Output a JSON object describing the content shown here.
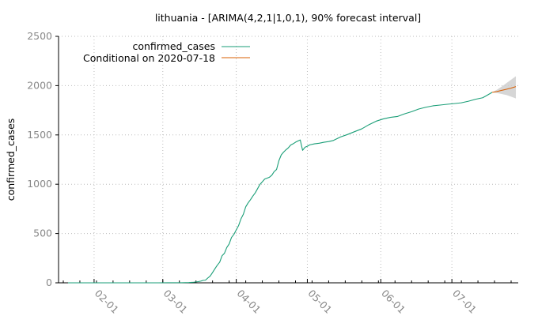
{
  "chart_data": {
    "type": "line",
    "title": "lithuania -  [ARIMA(4,2,1|1,0,1), 90% forecast interval]",
    "xlabel": "",
    "ylabel": "confirmed_cases",
    "x_type": "date",
    "xlim": [
      "2020-01-17",
      "2020-07-29"
    ],
    "ylim": [
      0,
      2500
    ],
    "yticks": [
      0,
      500,
      1000,
      1500,
      2000,
      2500
    ],
    "xticks": [
      {
        "date": "2020-02-01",
        "label": "02-01"
      },
      {
        "date": "2020-03-01",
        "label": "03-01"
      },
      {
        "date": "2020-04-01",
        "label": "04-01"
      },
      {
        "date": "2020-05-01",
        "label": "05-01"
      },
      {
        "date": "2020-06-01",
        "label": "06-01"
      },
      {
        "date": "2020-07-01",
        "label": "07-01"
      }
    ],
    "grid": true,
    "legend_position": "top-left",
    "series": [
      {
        "name": "confirmed_cases",
        "color": "#1a9e77",
        "x": [
          "2020-01-21",
          "2020-02-01",
          "2020-02-15",
          "2020-02-28",
          "2020-03-03",
          "2020-03-06",
          "2020-03-09",
          "2020-03-12",
          "2020-03-14",
          "2020-03-15",
          "2020-03-16",
          "2020-03-17",
          "2020-03-18",
          "2020-03-19",
          "2020-03-20",
          "2020-03-21",
          "2020-03-22",
          "2020-03-23",
          "2020-03-24",
          "2020-03-25",
          "2020-03-26",
          "2020-03-27",
          "2020-03-28",
          "2020-03-29",
          "2020-03-30",
          "2020-03-31",
          "2020-04-01",
          "2020-04-02",
          "2020-04-03",
          "2020-04-04",
          "2020-04-05",
          "2020-04-06",
          "2020-04-07",
          "2020-04-08",
          "2020-04-09",
          "2020-04-10",
          "2020-04-11",
          "2020-04-12",
          "2020-04-13",
          "2020-04-14",
          "2020-04-15",
          "2020-04-16",
          "2020-04-17",
          "2020-04-18",
          "2020-04-19",
          "2020-04-20",
          "2020-04-21",
          "2020-04-22",
          "2020-04-23",
          "2020-04-24",
          "2020-04-25",
          "2020-04-26",
          "2020-04-27",
          "2020-04-28",
          "2020-04-29",
          "2020-04-30",
          "2020-05-01",
          "2020-05-02",
          "2020-05-04",
          "2020-05-06",
          "2020-05-08",
          "2020-05-10",
          "2020-05-12",
          "2020-05-15",
          "2020-05-18",
          "2020-05-21",
          "2020-05-24",
          "2020-05-27",
          "2020-05-30",
          "2020-06-02",
          "2020-06-05",
          "2020-06-08",
          "2020-06-11",
          "2020-06-14",
          "2020-06-17",
          "2020-06-20",
          "2020-06-23",
          "2020-06-26",
          "2020-06-29",
          "2020-07-02",
          "2020-07-05",
          "2020-07-08",
          "2020-07-11",
          "2020-07-14",
          "2020-07-16",
          "2020-07-18"
        ],
        "y": [
          0,
          0,
          0,
          0,
          1,
          1,
          1,
          3,
          6,
          9,
          12,
          17,
          25,
          27,
          49,
          69,
          105,
          143,
          179,
          209,
          274,
          299,
          358,
          394,
          460,
          491,
          537,
          581,
          649,
          696,
          771,
          811,
          843,
          880,
          912,
          955,
          999,
          1025,
          1053,
          1062,
          1071,
          1091,
          1128,
          1149,
          1239,
          1298,
          1326,
          1350,
          1370,
          1398,
          1410,
          1426,
          1438,
          1449,
          1344,
          1375,
          1385,
          1399,
          1410,
          1416,
          1426,
          1433,
          1444,
          1479,
          1505,
          1534,
          1562,
          1604,
          1639,
          1662,
          1678,
          1687,
          1714,
          1736,
          1763,
          1781,
          1795,
          1803,
          1811,
          1818,
          1826,
          1842,
          1862,
          1877,
          1904,
          1932
        ]
      },
      {
        "name": "Conditional on 2020-07-18",
        "color": "#d95f02",
        "x": [
          "2020-07-18",
          "2020-07-20",
          "2020-07-22",
          "2020-07-24",
          "2020-07-26",
          "2020-07-28"
        ],
        "y": [
          1932,
          1940,
          1952,
          1963,
          1975,
          1990
        ],
        "interval_lower": [
          1932,
          1925,
          1915,
          1905,
          1888,
          1870
        ],
        "interval_upper": [
          1932,
          1958,
          1990,
          2025,
          2060,
          2095
        ]
      }
    ]
  }
}
